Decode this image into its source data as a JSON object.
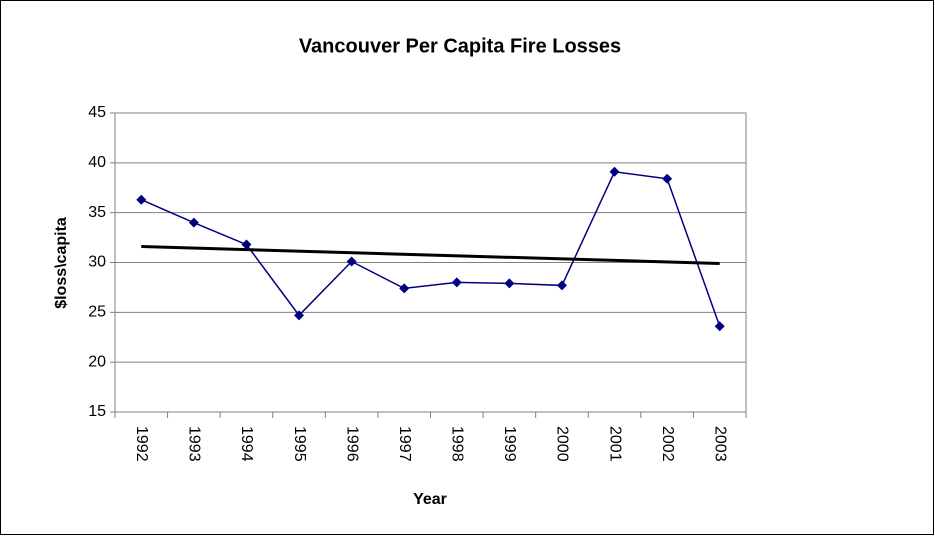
{
  "chart_data": {
    "type": "line",
    "title": "Vancouver Per Capita Fire Losses",
    "x_label": "Year",
    "y_label": "$loss\\capita",
    "categories": [
      "1992",
      "1993",
      "1994",
      "1995",
      "1996",
      "1997",
      "1998",
      "1999",
      "2000",
      "2001",
      "2002",
      "2003"
    ],
    "series": [
      {
        "name": "$loss\\capita",
        "color": "#000080",
        "values": [
          36.3,
          34.0,
          31.8,
          24.7,
          30.1,
          27.4,
          28.0,
          27.9,
          27.7,
          39.1,
          38.4,
          23.6
        ]
      }
    ],
    "trendline": {
      "color": "#000000",
      "values": [
        31.6,
        29.9
      ]
    },
    "ylim": [
      15,
      45
    ],
    "yticks": [
      15,
      20,
      25,
      30,
      35,
      40,
      45
    ],
    "grid": true
  }
}
